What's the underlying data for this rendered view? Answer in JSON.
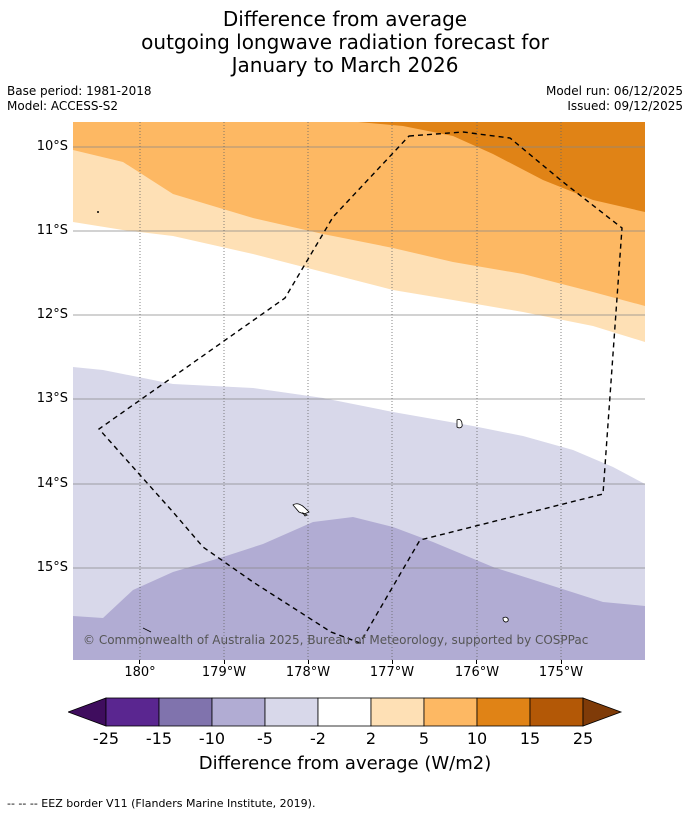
{
  "title": {
    "line1": "Difference from average",
    "line2": "outgoing longwave radiation forecast for",
    "line3": "January to March 2026"
  },
  "meta": {
    "base_period": "Base period: 1981-2018",
    "model": "Model: ACCESS-S2",
    "model_run": "Model run: 06/12/2025",
    "issued": "Issued: 09/12/2025"
  },
  "map": {
    "lat_labels": [
      "10°S",
      "11°S",
      "12°S",
      "13°S",
      "14°S",
      "15°S"
    ],
    "lon_labels": [
      "180°",
      "179°W",
      "178°W",
      "177°W",
      "176°W",
      "175°W"
    ],
    "copyright": "© Commonwealth of Australia 2025, Bureau of Meteorology, supported by COSPPac"
  },
  "legend": {
    "tick_labels": [
      "-25",
      "-15",
      "-10",
      "-5",
      "-2",
      "2",
      "5",
      "10",
      "15",
      "25"
    ],
    "colors": [
      "#3f0d5e",
      "#5a2690",
      "#8073ad",
      "#b1acd3",
      "#d8d8ea",
      "#ffffff",
      "#fee0b5",
      "#fdb863",
      "#e08316",
      "#b35806",
      "#7f3b08"
    ],
    "title": "Difference from average (W/m2)"
  },
  "footnote": "--  --  -- EEZ border V11 (Flanders Marine Institute, 2019)."
}
